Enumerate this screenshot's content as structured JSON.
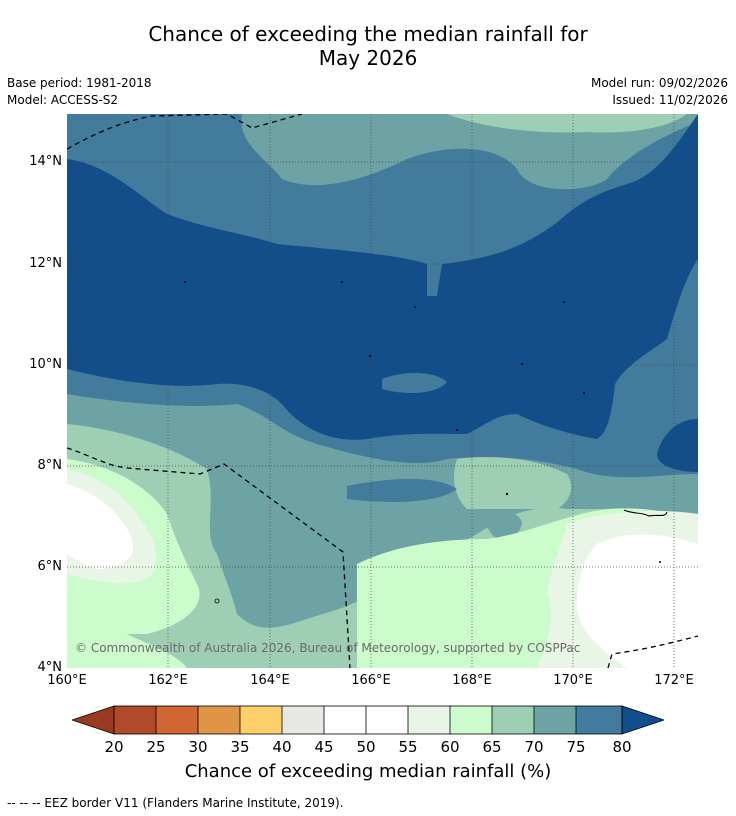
{
  "title": {
    "line1": "Chance of exceeding the median rainfall for",
    "line2": "May 2026"
  },
  "meta": {
    "base_period": "Base period: 1981-2018",
    "model": "Model: ACCESS-S2",
    "model_run": "Model run: 09/02/2026",
    "issued": "Issued: 11/02/2026"
  },
  "map": {
    "lat_labels": [
      "14°N",
      "12°N",
      "10°N",
      "8°N",
      "6°N",
      "4°N"
    ],
    "lon_labels": [
      "160°E",
      "162°E",
      "164°E",
      "166°E",
      "168°E",
      "170°E",
      "172°E"
    ],
    "copyright": "© Commonwealth of Australia 2026, Bureau of Meteorology, supported by COSPPac"
  },
  "colorbar": {
    "labels": [
      "20",
      "25",
      "30",
      "35",
      "40",
      "45",
      "50",
      "55",
      "60",
      "65",
      "70",
      "75",
      "80"
    ],
    "colors": {
      "below20": "#9a3a22",
      "c20_25": "#b04a28",
      "c25_30": "#cf6633",
      "c30_35": "#e29445",
      "c35_40": "#fdd06c",
      "c40_45": "#e8e8e3",
      "c45_50": "#ffffff",
      "c50_55": "#ffffff",
      "c55_60": "#e9f5e6",
      "c60_65": "#ccfccc",
      "c65_70": "#9ecfb5",
      "c70_75": "#6ea3a5",
      "c75_80": "#437b9c",
      "above80": "#144e8a"
    },
    "title": "Chance of exceeding median rainfall (%)"
  },
  "footer": "--  --  -- EEZ border V11 (Flanders Marine Institute, 2019)."
}
